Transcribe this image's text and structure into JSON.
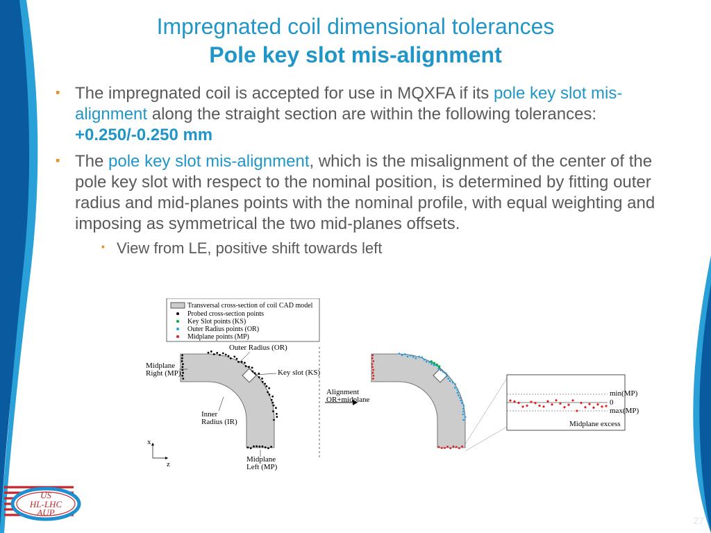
{
  "colors": {
    "accent": "#2096c8",
    "bullet": "#f08a24",
    "text": "#595959",
    "coil_fill": "#cccccc",
    "coil_stroke": "#555555",
    "swoosh_dark": "#0a5aa0",
    "swoosh_light": "#2aa0d8",
    "logo_red": "#c1272d",
    "logo_blue": "#1f8fd0"
  },
  "title": {
    "line1": "Impregnated coil dimensional tolerances",
    "line2": "Pole key slot mis-alignment"
  },
  "bullets": {
    "b1_a": "The impregnated coil is accepted for use in MQXFA if its ",
    "b1_hl": "pole key slot mis-alignment",
    "b1_b": " along the straight section are within the following tolerances: ",
    "b1_tol": "+0.250/-0.250 mm",
    "b2_a": "The ",
    "b2_hl": "pole key slot mis-alignment",
    "b2_b": ", which is the misalignment of the center of the pole key slot with respect to the nominal position, is determined by fitting outer radius and mid-planes points with the nominal profile, with equal weighting and imposing as symmetrical the two mid-planes offsets.",
    "sub1": "View from LE, positive shift towards left"
  },
  "legend": {
    "l1": "Transversal cross-section of coil CAD model",
    "l2": "Probed cross-section points",
    "l3": "Key Slot points (KS)",
    "l4": "Outer Radius points (OR)",
    "l5": "Midplane points (MP)"
  },
  "diagram_labels": {
    "outer_radius": "Outer Radius (OR)",
    "key_slot": "Key slot (KS)",
    "midplane_right": "Midplane\nRight (MP)",
    "midplane_left": "Midplane\nLeft (MP)",
    "inner_radius": "Inner\nRadius (IR)",
    "alignment": "Alignment\nOR+midplane",
    "min_mp": "min(MP)",
    "zero": "0",
    "max_mp": "max(MP)",
    "midplane_excess": "Midplane excess",
    "axis_x": "x",
    "axis_z": "z"
  },
  "logo": {
    "l1": "US",
    "l2": "HL-LHC",
    "l3": "AUP"
  },
  "page": "27",
  "diagram_style": {
    "point_colors": {
      "probed": "#000000",
      "ks": "#00aa44",
      "or": "#1fa0e8",
      "mp": "#e02020"
    },
    "point_radius": 1.4,
    "arc_outer_r": 95,
    "arc_inner_r": 55
  }
}
